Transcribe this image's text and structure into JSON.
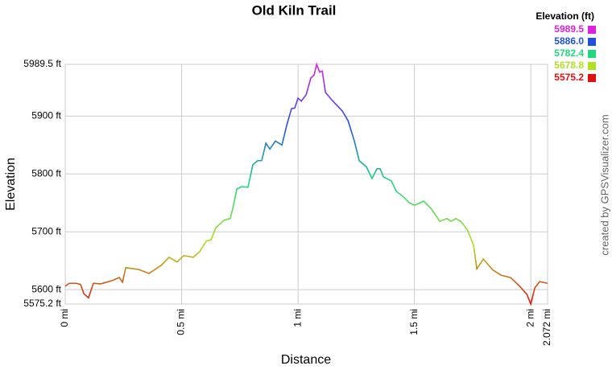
{
  "chart_data": {
    "type": "line",
    "title": "Old Kiln Trail",
    "x_label": "Distance",
    "y_label": "Elevation",
    "credit": "created by GPSVisualizer.com",
    "grid": true,
    "xlim": [
      0,
      2.072
    ],
    "ylim": [
      5575.2,
      5989.5
    ],
    "xticks": [
      {
        "value": 0,
        "label": "0 mi"
      },
      {
        "value": 0.5,
        "label": "0.5 mi"
      },
      {
        "value": 1,
        "label": "1 mi"
      },
      {
        "value": 1.5,
        "label": "1.5 mi"
      },
      {
        "value": 2,
        "label": "2 mi"
      },
      {
        "value": 2.072,
        "label": "2.072 mi"
      }
    ],
    "yticks": [
      {
        "value": 5575.2,
        "label": "5575.2 ft"
      },
      {
        "value": 5600,
        "label": "5600 ft"
      },
      {
        "value": 5700,
        "label": "5700 ft"
      },
      {
        "value": 5800,
        "label": "5800 ft"
      },
      {
        "value": 5900,
        "label": "5900 ft"
      },
      {
        "value": 5989.5,
        "label": "5989.5 ft"
      }
    ],
    "legend": {
      "title": "Elevation (ft)",
      "position": "top-right",
      "items": [
        {
          "value": 5989.5,
          "label": "5989.5",
          "color": "#e020e0"
        },
        {
          "value": 5886,
          "label": "5886.0",
          "color": "#2050e0"
        },
        {
          "value": 5782.4,
          "label": "5782.4",
          "color": "#20d880"
        },
        {
          "value": 5678.8,
          "label": "5678.8",
          "color": "#b0e020"
        },
        {
          "value": 5575.2,
          "label": "5575.2",
          "color": "#e01010"
        }
      ]
    },
    "x": [
      0,
      0.017,
      0.048,
      0.066,
      0.08,
      0.1,
      0.121,
      0.152,
      0.204,
      0.232,
      0.246,
      0.26,
      0.315,
      0.36,
      0.412,
      0.446,
      0.481,
      0.509,
      0.55,
      0.578,
      0.606,
      0.626,
      0.647,
      0.682,
      0.709,
      0.723,
      0.737,
      0.758,
      0.785,
      0.806,
      0.827,
      0.844,
      0.862,
      0.879,
      0.903,
      0.931,
      0.952,
      0.972,
      0.986,
      1.0,
      1.014,
      1.035,
      1.055,
      1.069,
      1.08,
      1.093,
      1.104,
      1.118,
      1.145,
      1.19,
      1.215,
      1.242,
      1.263,
      1.294,
      1.318,
      1.339,
      1.353,
      1.367,
      1.401,
      1.422,
      1.457,
      1.478,
      1.502,
      1.54,
      1.574,
      1.609,
      1.64,
      1.657,
      1.678,
      1.699,
      1.727,
      1.754,
      1.768,
      1.796,
      1.837,
      1.872,
      1.913,
      1.952,
      1.983,
      2.0,
      2.017,
      2.038,
      2.072
    ],
    "series": [
      {
        "name": "Elevation",
        "values": [
          5606,
          5611,
          5611,
          5609,
          5593,
          5586,
          5611,
          5610,
          5616,
          5621,
          5613,
          5638,
          5635,
          5628,
          5642,
          5656,
          5648,
          5659,
          5656,
          5666,
          5684,
          5686,
          5707,
          5720,
          5723,
          5746,
          5774,
          5778,
          5777,
          5816,
          5823,
          5823,
          5853,
          5843,
          5857,
          5850,
          5885,
          5913,
          5914,
          5931,
          5926,
          5937,
          5966,
          5971,
          5989.5,
          5976,
          5978,
          5941,
          5928,
          5909,
          5892,
          5857,
          5823,
          5812,
          5792,
          5809,
          5809,
          5795,
          5788,
          5770,
          5759,
          5750,
          5746,
          5753,
          5739,
          5718,
          5723,
          5718,
          5723,
          5718,
          5704,
          5677,
          5636,
          5653,
          5634,
          5625,
          5621,
          5606,
          5592,
          5575.2,
          5603,
          5614,
          5611
        ]
      }
    ]
  }
}
